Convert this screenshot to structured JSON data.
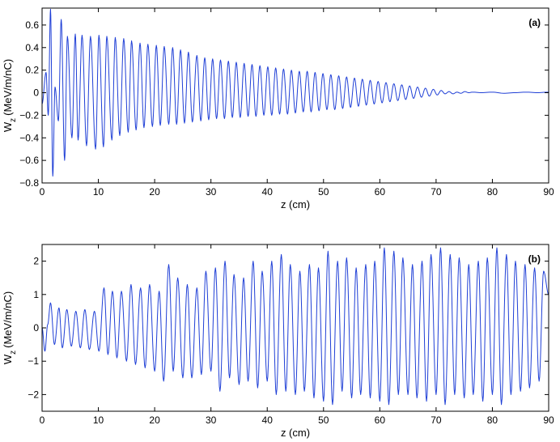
{
  "chart_data": [
    {
      "type": "line",
      "panel_label": "(a)",
      "xlabel": "z (cm)",
      "ylabel_main": "W",
      "ylabel_sub": "z",
      "ylabel_unit": "(MeV/m/nC)",
      "xlim": [
        0,
        90
      ],
      "ylim": [
        -0.8,
        0.75
      ],
      "xticks": [
        0,
        10,
        20,
        30,
        40,
        50,
        60,
        70,
        80,
        90
      ],
      "xtick_labels": [
        "0",
        "10",
        "20",
        "30",
        "40",
        "50",
        "60",
        "70",
        "80",
        "90"
      ],
      "yticks": [
        -0.8,
        -0.6,
        -0.4,
        -0.2,
        0,
        0.2,
        0.4,
        0.6
      ],
      "ytick_labels": [
        "−0.8",
        "−0.6",
        "−0.4",
        "−0.2",
        "0",
        "0.2",
        "0.4",
        "0.6"
      ],
      "grid": false,
      "series": [
        {
          "color": "#1f3fd6",
          "x": [
            0,
            0.7,
            1.1,
            1.5,
            1.9,
            2.3,
            2.9,
            3.4,
            4.0,
            4.5,
            5.3,
            5.9,
            6.4,
            7.1,
            7.9,
            8.6,
            9.5,
            10.1,
            10.9,
            11.5,
            12.4,
            13.0,
            13.8,
            14.5,
            15.3,
            15.9,
            16.7,
            17.4,
            18.1,
            18.8,
            19.6,
            20.3,
            21.0,
            21.7,
            22.5,
            23.2,
            23.9,
            24.6,
            25.3,
            26.0,
            26.7,
            27.5,
            28.2,
            28.9,
            29.6,
            30.3,
            31.0,
            31.7,
            32.4,
            33.1,
            33.8,
            34.5,
            35.2,
            35.9,
            36.6,
            37.3,
            38.0,
            38.7,
            39.4,
            40.1,
            40.8,
            41.5,
            42.2,
            42.9,
            43.6,
            44.3,
            45.0,
            45.7,
            46.4,
            47.1,
            47.8,
            48.5,
            49.2,
            49.9,
            50.6,
            51.3,
            52.0,
            52.7,
            53.4,
            54.1,
            54.8,
            55.5,
            56.2,
            56.9,
            57.6,
            58.3,
            59.0,
            59.7,
            60.4,
            61.1,
            61.8,
            62.5,
            63.2,
            63.9,
            64.6,
            65.3,
            66.0,
            66.7,
            67.4,
            68.1,
            68.8,
            69.5,
            70.2,
            70.9,
            71.6,
            72.3,
            73.0,
            73.7,
            74.4,
            75.1,
            75.8,
            76.5,
            78,
            80,
            82,
            84,
            86,
            88,
            90
          ],
          "y": [
            -0.1,
            0.18,
            -0.2,
            0.74,
            -0.74,
            0.05,
            -0.25,
            0.65,
            -0.6,
            0.5,
            -0.4,
            0.52,
            -0.42,
            0.51,
            -0.47,
            0.5,
            -0.5,
            0.51,
            -0.48,
            0.5,
            -0.42,
            0.49,
            -0.38,
            0.48,
            -0.35,
            0.46,
            -0.33,
            0.44,
            -0.31,
            0.43,
            -0.3,
            0.42,
            -0.29,
            0.41,
            -0.28,
            0.4,
            -0.28,
            0.38,
            -0.27,
            0.36,
            -0.26,
            0.33,
            -0.25,
            0.31,
            -0.24,
            0.3,
            -0.23,
            0.29,
            -0.23,
            0.28,
            -0.22,
            0.27,
            -0.22,
            0.26,
            -0.21,
            0.25,
            -0.21,
            0.24,
            -0.2,
            0.23,
            -0.2,
            0.22,
            -0.19,
            0.21,
            -0.19,
            0.2,
            -0.18,
            0.19,
            -0.17,
            0.19,
            -0.17,
            0.18,
            -0.16,
            0.17,
            -0.15,
            0.16,
            -0.15,
            0.15,
            -0.14,
            0.14,
            -0.13,
            0.13,
            -0.12,
            0.12,
            -0.11,
            0.11,
            -0.1,
            0.1,
            -0.09,
            0.09,
            -0.08,
            0.08,
            -0.07,
            0.07,
            -0.06,
            0.06,
            -0.05,
            0.05,
            -0.04,
            0.04,
            -0.03,
            0.03,
            -0.02,
            0.02,
            -0.01,
            0.01,
            -0.01,
            0.005,
            -0.005,
            0.01,
            0.0,
            0.005,
            0.0,
            0.005,
            -0.005,
            0.0,
            0.005,
            0.0,
            0.005
          ]
        }
      ]
    },
    {
      "type": "line",
      "panel_label": "(b)",
      "xlabel": "z (cm)",
      "ylabel_main": "W",
      "ylabel_sub": "z",
      "ylabel_unit": "(MeV/m/nC)",
      "xlim": [
        0,
        90
      ],
      "ylim": [
        -2.5,
        2.5
      ],
      "xticks": [
        0,
        10,
        20,
        30,
        40,
        50,
        60,
        70,
        80,
        90
      ],
      "xtick_labels": [
        "0",
        "10",
        "20",
        "30",
        "40",
        "50",
        "60",
        "70",
        "80",
        "90"
      ],
      "yticks": [
        -2,
        -1,
        0,
        1,
        2
      ],
      "ytick_labels": [
        "−2",
        "−1",
        "0",
        "1",
        "2"
      ],
      "grid": false,
      "series": [
        {
          "color": "#1f3fd6",
          "x": [
            0,
            0.5,
            1.0,
            1.5,
            2.2,
            3.0,
            3.6,
            4.4,
            5.2,
            6.0,
            6.8,
            7.6,
            8.4,
            9.3,
            10.1,
            11.0,
            11.7,
            12.5,
            13.3,
            14.1,
            15.0,
            15.8,
            16.6,
            17.5,
            18.3,
            19.1,
            20.0,
            20.8,
            21.6,
            22.5,
            23.3,
            24.1,
            25.0,
            25.8,
            26.6,
            27.5,
            28.3,
            29.1,
            30.0,
            30.8,
            31.6,
            32.5,
            33.3,
            34.1,
            35.0,
            35.8,
            36.6,
            37.5,
            38.3,
            39.1,
            40.0,
            40.8,
            41.6,
            42.5,
            43.3,
            44.1,
            45.0,
            45.8,
            46.6,
            47.5,
            48.3,
            49.1,
            50.0,
            50.8,
            51.6,
            52.5,
            53.3,
            54.1,
            55.0,
            55.8,
            56.6,
            57.5,
            58.3,
            59.1,
            60.0,
            60.8,
            61.6,
            62.5,
            63.3,
            64.1,
            65.0,
            65.8,
            66.6,
            67.5,
            68.3,
            69.1,
            70.0,
            70.8,
            71.6,
            72.5,
            73.3,
            74.1,
            75.0,
            75.8,
            76.6,
            77.5,
            78.3,
            79.1,
            80.0,
            80.8,
            81.6,
            82.5,
            83.3,
            84.1,
            85.0,
            85.8,
            86.6,
            87.5,
            88.3,
            89.1,
            90.0
          ],
          "y": [
            0,
            -0.7,
            0.1,
            0.75,
            -0.5,
            0.6,
            -0.6,
            0.55,
            -0.55,
            0.5,
            -0.6,
            0.55,
            -0.65,
            0.5,
            -0.7,
            1.2,
            -0.8,
            1.1,
            -0.9,
            1.1,
            -1.0,
            1.3,
            -1.1,
            1.2,
            -1.2,
            1.3,
            -1.3,
            1.1,
            -1.6,
            1.9,
            -1.3,
            1.5,
            -1.5,
            1.3,
            -1.5,
            1.2,
            -1.4,
            1.7,
            -1.3,
            1.8,
            -1.9,
            2.0,
            -1.5,
            1.6,
            -1.7,
            1.5,
            -1.6,
            2.0,
            -1.8,
            1.7,
            -1.6,
            2.0,
            -2.0,
            2.2,
            -1.9,
            1.9,
            -2.0,
            1.7,
            -1.9,
            1.9,
            -2.1,
            1.8,
            -2.2,
            2.3,
            -2.3,
            2.0,
            -1.9,
            2.1,
            -2.1,
            1.8,
            -2.0,
            1.9,
            -2.1,
            2.0,
            -2.2,
            2.4,
            -2.3,
            2.3,
            -2.0,
            2.1,
            -2.0,
            1.9,
            -2.1,
            2.0,
            -2.2,
            2.2,
            -2.0,
            2.4,
            -2.3,
            2.2,
            -2.0,
            2.1,
            -2.1,
            1.9,
            -2.0,
            2.0,
            -2.2,
            2.1,
            -2.0,
            2.4,
            -2.3,
            2.2,
            -2.0,
            2.0,
            -1.9,
            1.9,
            -1.8,
            1.8,
            -1.6,
            1.7,
            1.0
          ]
        }
      ]
    }
  ]
}
